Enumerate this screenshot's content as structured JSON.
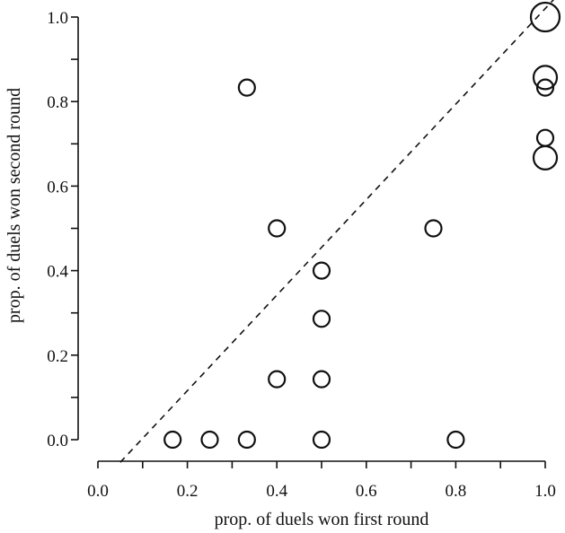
{
  "chart_data": {
    "type": "scatter",
    "title": "",
    "xlabel": "prop. of duels won first round",
    "ylabel": "prop. of duels won second round",
    "xlim": [
      0.0,
      1.0
    ],
    "ylim": [
      0.0,
      1.0
    ],
    "x_ticks": [
      0.0,
      0.2,
      0.4,
      0.6,
      0.8,
      1.0
    ],
    "y_ticks": [
      0.0,
      0.2,
      0.4,
      0.6,
      0.8,
      1.0
    ],
    "x_tick_labels": [
      "0.0",
      "0.2",
      "0.4",
      "0.6",
      "0.8",
      "1.0"
    ],
    "y_tick_labels": [
      "0.0",
      "0.2",
      "0.4",
      "0.6",
      "0.8",
      "1.0"
    ],
    "grid": false,
    "legend": "none",
    "points": [
      {
        "x": 0.167,
        "y": 0.0,
        "size": 1
      },
      {
        "x": 0.25,
        "y": 0.0,
        "size": 1
      },
      {
        "x": 0.333,
        "y": 0.0,
        "size": 1
      },
      {
        "x": 0.5,
        "y": 0.0,
        "size": 1
      },
      {
        "x": 0.8,
        "y": 0.0,
        "size": 1
      },
      {
        "x": 0.4,
        "y": 0.143,
        "size": 1
      },
      {
        "x": 0.5,
        "y": 0.143,
        "size": 1
      },
      {
        "x": 0.5,
        "y": 0.286,
        "size": 1
      },
      {
        "x": 0.5,
        "y": 0.4,
        "size": 1
      },
      {
        "x": 0.4,
        "y": 0.5,
        "size": 1
      },
      {
        "x": 0.75,
        "y": 0.5,
        "size": 1
      },
      {
        "x": 0.333,
        "y": 0.833,
        "size": 1
      },
      {
        "x": 1.0,
        "y": 0.667,
        "size": 2
      },
      {
        "x": 1.0,
        "y": 0.714,
        "size": 1
      },
      {
        "x": 1.0,
        "y": 0.833,
        "size": 1
      },
      {
        "x": 1.0,
        "y": 0.857,
        "size": 2
      },
      {
        "x": 1.0,
        "y": 1.0,
        "size": 3
      }
    ],
    "fit_line": {
      "style": "dashed",
      "slope": 1.13,
      "intercept": -0.11
    }
  }
}
